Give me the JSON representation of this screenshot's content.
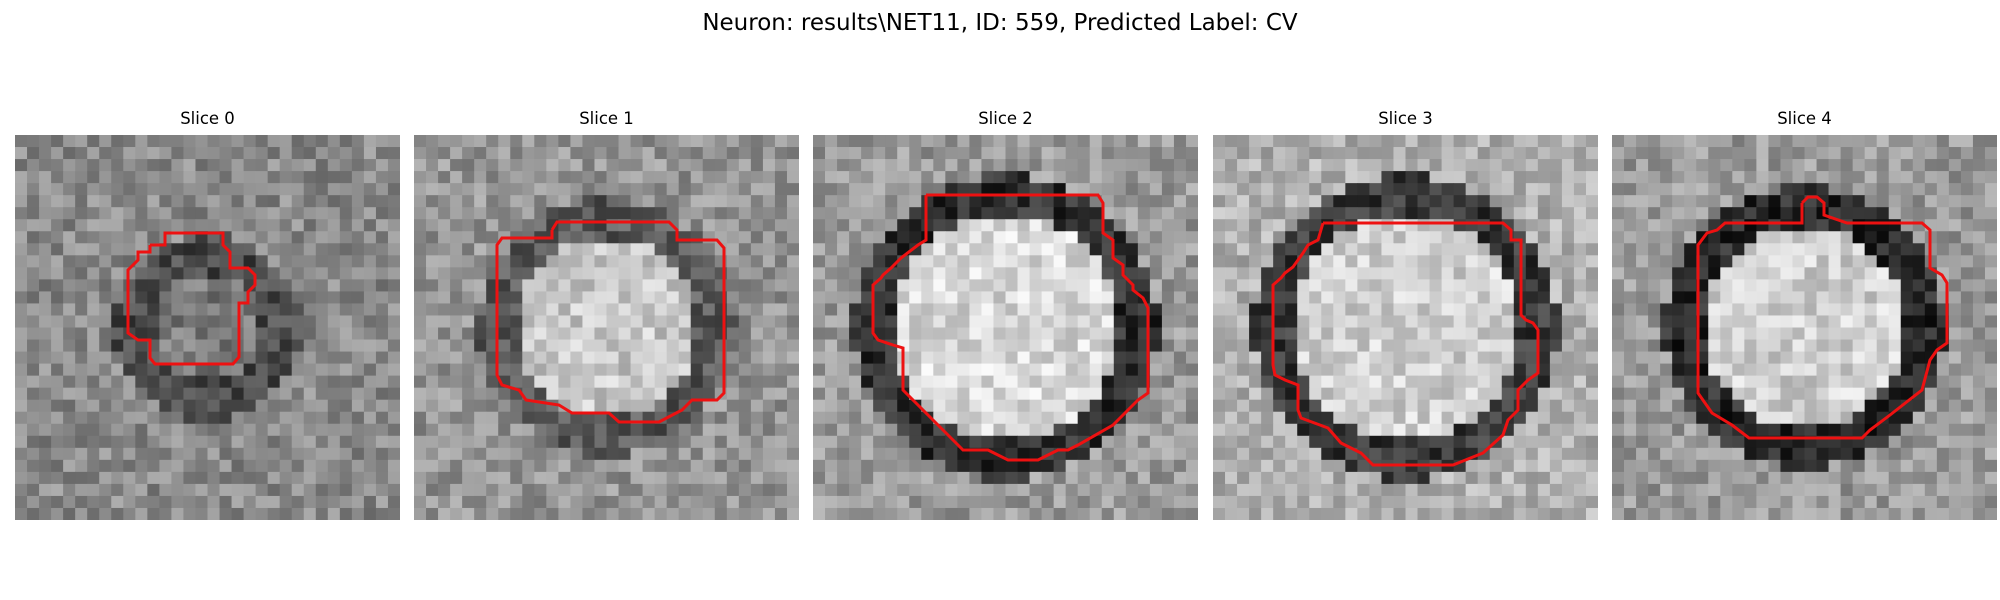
{
  "figure": {
    "title": "Neuron: results\\NET11, ID: 559, Predicted Label: CV",
    "contour_color": "#ee1111"
  },
  "slices": [
    {
      "label": "Slice 0",
      "bg": "#8a8a8a",
      "ring": "#4a4a4a",
      "core": "#7a7a7a",
      "seed": 11
    },
    {
      "label": "Slice 1",
      "bg": "#959595",
      "ring": "#5a5a5a",
      "core": "#c8c8c8",
      "seed": 23
    },
    {
      "label": "Slice 2",
      "bg": "#9a9a9a",
      "ring": "#303030",
      "core": "#d8d8d8",
      "seed": 37
    },
    {
      "label": "Slice 3",
      "bg": "#b0b0b0",
      "ring": "#3a3a3a",
      "core": "#d0d0d0",
      "seed": 53
    },
    {
      "label": "Slice 4",
      "bg": "#9a9a9a",
      "ring": "#2a2a2a",
      "core": "#cfcfcf",
      "seed": 71
    }
  ]
}
